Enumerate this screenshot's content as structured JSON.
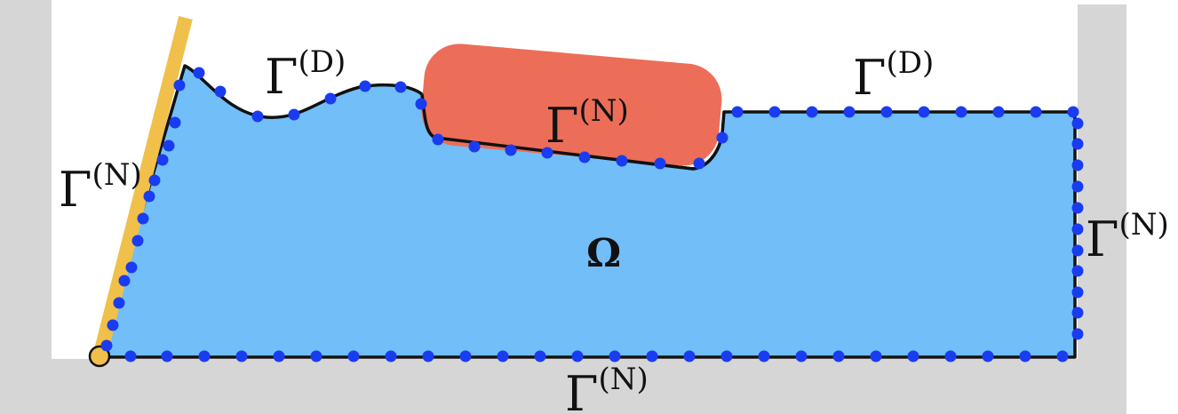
{
  "colors": {
    "wall": "#d6d6d6",
    "fluid": "#72bef8",
    "boundary": "#111111",
    "node": "#1a3cf0",
    "obstacle": "#ec6e58",
    "rod": "#f0c04a"
  },
  "labels": {
    "domain": "Ω",
    "gamma": "Γ",
    "dirichlet_sup": "(D)",
    "neumann_sup": "(N)"
  }
}
